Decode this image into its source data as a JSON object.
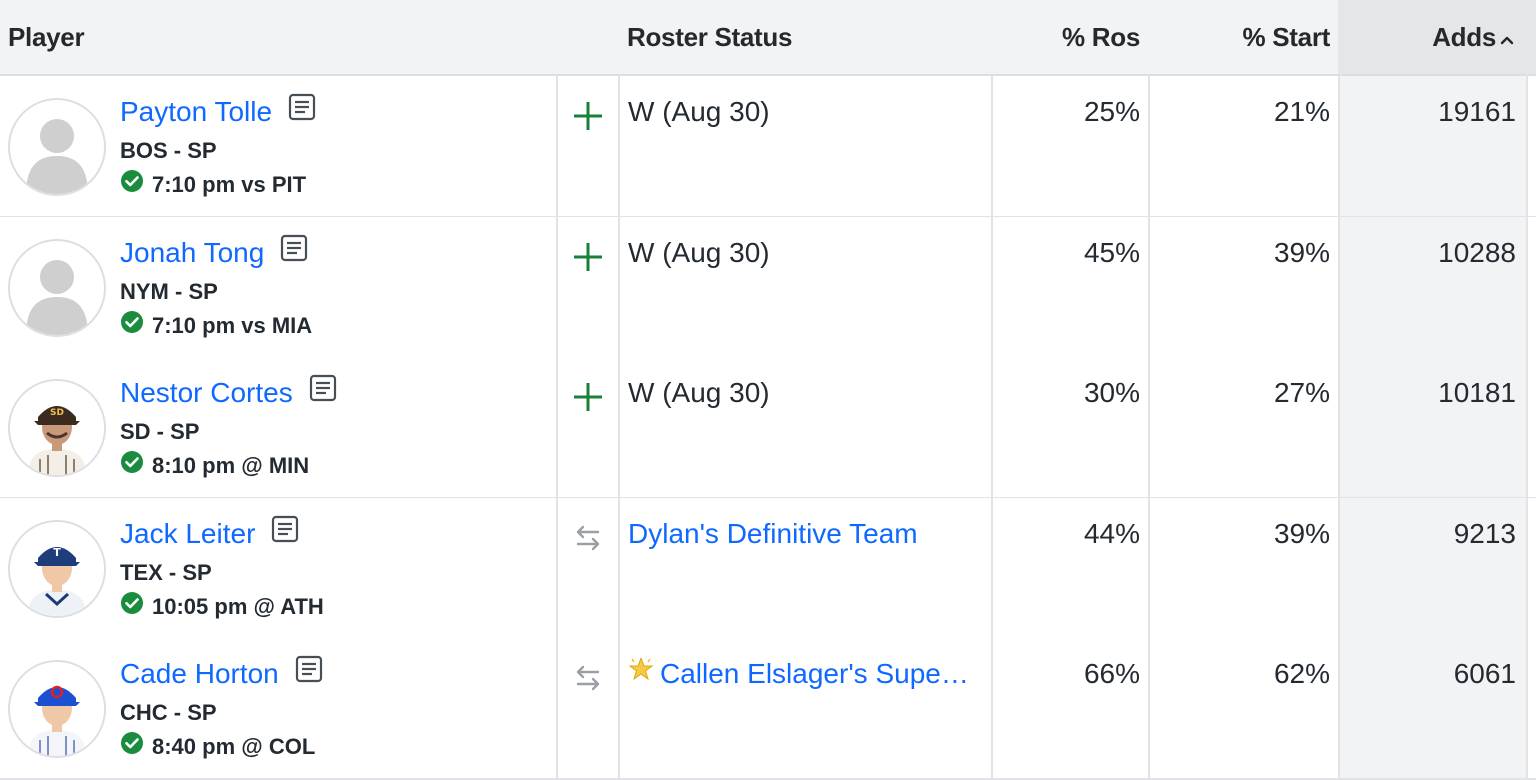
{
  "header": {
    "player": "Player",
    "roster_status": "Roster Status",
    "pct_ros": "% Ros",
    "pct_start": "% Start",
    "adds": "Adds"
  },
  "rows": [
    {
      "name": "Payton Tolle",
      "team": "BOS - SP",
      "game": "7:10 pm vs PIT",
      "action": "add",
      "status": "W (Aug 30)",
      "status_link": false,
      "ros": "25%",
      "start": "21%",
      "adds": "19161",
      "avatar": "silhouette"
    },
    {
      "name": "Jonah Tong",
      "team": "NYM - SP",
      "game": "7:10 pm vs MIA",
      "action": "add",
      "status": "W (Aug 30)",
      "status_link": false,
      "ros": "45%",
      "start": "39%",
      "adds": "10288",
      "avatar": "silhouette"
    },
    {
      "name": "Nestor Cortes",
      "team": "SD - SP",
      "game": "8:10 pm @ MIN",
      "action": "add",
      "status": "W (Aug 30)",
      "status_link": false,
      "ros": "30%",
      "start": "27%",
      "adds": "10181",
      "avatar": "photo-sd"
    },
    {
      "name": "Jack Leiter",
      "team": "TEX - SP",
      "game": "10:05 pm @ ATH",
      "action": "trade",
      "status": "Dylan's Definitive Team",
      "status_link": true,
      "ros": "44%",
      "start": "39%",
      "adds": "9213",
      "avatar": "photo-tex"
    },
    {
      "name": "Cade Horton",
      "team": "CHC - SP",
      "game": "8:40 pm @ COL",
      "action": "trade",
      "status": "Callen Elslager's Supers…",
      "status_link": true,
      "ros": "66%",
      "start": "62%",
      "adds": "6061",
      "avatar": "photo-chc"
    }
  ],
  "colors": {
    "link": "#0f69ff",
    "add_green": "#188038",
    "check_green": "#1a8c3e"
  }
}
